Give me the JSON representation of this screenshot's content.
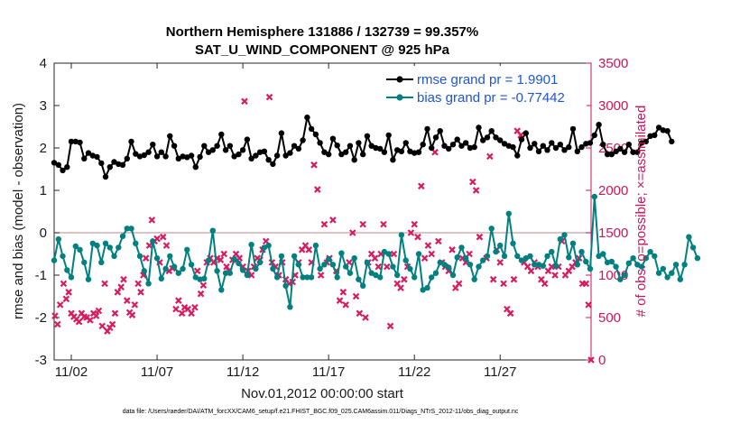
{
  "chart_data": {
    "type": "line",
    "title": [
      "Northern Hemisphere 131886 / 132739 = 99.357%",
      "SAT_U_WIND_COMPONENT @ 925 hPa"
    ],
    "xlabel": "Nov.01,2012 00:00:00 start",
    "ylabel_left": "rmse and bias (model - observation)",
    "ylabel_right": "# of obs: o=possible; ×=assimilated",
    "x_ticks": [
      {
        "day": 2,
        "label": "11/02"
      },
      {
        "day": 7,
        "label": "11/07"
      },
      {
        "day": 12,
        "label": "11/12"
      },
      {
        "day": 17,
        "label": "11/17"
      },
      {
        "day": 22,
        "label": "11/22"
      },
      {
        "day": 27,
        "label": "11/27"
      }
    ],
    "xlim": [
      1.0,
      32.3
    ],
    "ylim_left": [
      -3,
      4
    ],
    "y_ticks_left": [
      "-3",
      "-2",
      "-1",
      "0",
      "1",
      "2",
      "3",
      "4"
    ],
    "ylim_right": [
      0,
      3500
    ],
    "y_ticks_right": [
      "0",
      "500",
      "1000",
      "1500",
      "2000",
      "2500",
      "3000",
      "3500"
    ],
    "zero_line": 0,
    "footnote": "data file: /Users/raeder/DAI/ATM_forcXX/CAM6_setup/f.e21.FHIST_BGC.f09_025.CAM6assim.011/Diags_NTrS_2012-11/obs_diag_output.nc",
    "colors": {
      "rmse": "#000000",
      "bias": "#008080",
      "obs": "#d81b60",
      "legend_text": "#1f55d8",
      "right_axis": "#c8165a"
    },
    "series": [
      {
        "name": "rmse grand pr = 1.9901",
        "t0": 1.0,
        "dt": 0.25,
        "values": [
          1.65,
          1.6,
          1.47,
          1.55,
          2.15,
          2.15,
          2.13,
          1.75,
          1.88,
          1.82,
          1.79,
          1.64,
          1.32,
          1.55,
          1.67,
          1.62,
          1.6,
          1.75,
          2.15,
          1.86,
          1.8,
          1.83,
          1.9,
          2.08,
          1.8,
          1.9,
          1.8,
          2.28,
          2.05,
          1.75,
          1.8,
          1.78,
          1.82,
          1.55,
          1.79,
          2.05,
          1.9,
          1.95,
          2.05,
          2.32,
          1.95,
          2.05,
          1.8,
          1.85,
          1.95,
          2.2,
          1.75,
          1.82,
          1.9,
          1.92,
          1.72,
          1.62,
          1.82,
          2.35,
          1.82,
          1.88,
          2.05,
          1.98,
          2.18,
          2.72,
          2.45,
          2.32,
          2.12,
          1.9,
          1.85,
          2.22,
          2.06,
          1.85,
          1.9,
          2.05,
          1.72,
          2.12,
          1.85,
          2.28,
          2.05,
          2.0,
          1.98,
          1.9,
          2.3,
          1.72,
          1.95,
          1.92,
          2.12,
          1.92,
          1.88,
          1.9,
          2.08,
          2.45,
          2.0,
          2.25,
          2.4,
          2.05,
          1.98,
          2.08,
          2.2,
          2.05,
          2.12,
          2.0,
          2.02,
          2.48,
          2.18,
          2.25,
          2.4,
          2.25,
          2.18,
          2.1,
          2.05,
          2.02,
          1.82,
          2.2,
          2.35,
          2.0,
          2.1,
          1.92,
          2.05,
          1.95,
          2.12,
          2.0,
          2.08,
          1.95,
          2.02,
          2.45,
          1.92,
          2.02,
          2.1,
          2.12,
          2.3,
          2.55,
          2.08,
          1.85,
          1.85,
          1.92,
          1.98,
          1.9,
          2.08,
          1.9,
          1.9,
          2.12,
          2.15,
          2.28,
          2.3,
          2.48,
          2.42,
          2.4,
          2.15
        ]
      },
      {
        "name": "bias grand pr = -0.77442",
        "t0": 1.0,
        "dt": 0.25,
        "values": [
          -0.65,
          -0.15,
          -0.55,
          -0.88,
          -1.05,
          -0.32,
          -0.4,
          -0.7,
          -1.1,
          -0.25,
          -0.3,
          -0.7,
          -0.25,
          -0.35,
          -0.55,
          -0.35,
          -0.08,
          0.1,
          0.1,
          -0.25,
          -0.55,
          -0.9,
          -1.2,
          -0.2,
          -0.6,
          -1.08,
          -0.85,
          -0.55,
          -0.8,
          -0.95,
          -0.85,
          -0.4,
          -0.75,
          -1.05,
          -1.1,
          -1.08,
          -0.65,
          0.05,
          -0.9,
          -1.35,
          -0.95,
          -0.95,
          -0.62,
          -0.72,
          -0.88,
          -1.0,
          -0.28,
          -0.85,
          -0.7,
          -0.35,
          -0.3,
          -0.85,
          -1.05,
          -0.55,
          -1.25,
          -1.75,
          -0.55,
          -0.75,
          -1.05,
          -1.05,
          -1.05,
          -0.3,
          -0.85,
          -0.75,
          -0.62,
          -0.75,
          -1.05,
          -0.48,
          -0.8,
          -0.95,
          -0.6,
          -1.1,
          -1.25,
          -0.7,
          -0.95,
          -1.0,
          -1.05,
          -0.45,
          -0.5,
          -0.8,
          -1.0,
          -0.05,
          -0.65,
          -0.85,
          -1.05,
          -0.5,
          -1.35,
          -1.3,
          -1.05,
          -0.95,
          -0.7,
          -0.75,
          -0.82,
          -1.0,
          -0.58,
          -0.35,
          -0.6,
          -0.75,
          -1.1,
          -0.8,
          -0.65,
          -0.55,
          0.1,
          -0.45,
          -0.3,
          -0.55,
          0.45,
          -0.25,
          -0.55,
          -0.65,
          -0.6,
          -0.55,
          -0.75,
          -0.75,
          -0.78,
          -0.55,
          -0.45,
          -0.78,
          -0.15,
          -0.05,
          -0.58,
          -0.25,
          -0.75,
          -0.45,
          -0.68,
          -0.85,
          0.85,
          -0.55,
          -0.5,
          -0.7,
          -0.68,
          -0.8,
          -1.1,
          -1.0,
          -0.72,
          -0.6,
          -0.75,
          -0.8,
          -0.6,
          -0.45,
          -0.55,
          -0.95,
          -0.85,
          -1.05,
          -0.95,
          -0.75,
          -1.1,
          -0.75,
          -0.1,
          -0.35,
          -0.6
        ]
      },
      {
        "name": "obs assimilated",
        "marker": "x",
        "points": [
          [
            1.05,
            520
          ],
          [
            1.2,
            420
          ],
          [
            1.35,
            650
          ],
          [
            1.55,
            900
          ],
          [
            1.7,
            720
          ],
          [
            1.85,
            800
          ],
          [
            2.0,
            550
          ],
          [
            2.15,
            510
          ],
          [
            2.3,
            480
          ],
          [
            2.45,
            450
          ],
          [
            2.6,
            550
          ],
          [
            2.75,
            510
          ],
          [
            2.9,
            500
          ],
          [
            3.1,
            470
          ],
          [
            3.3,
            550
          ],
          [
            3.45,
            520
          ],
          [
            3.6,
            580
          ],
          [
            3.8,
            400
          ],
          [
            3.95,
            900
          ],
          [
            4.1,
            340
          ],
          [
            4.25,
            380
          ],
          [
            4.4,
            420
          ],
          [
            4.55,
            550
          ],
          [
            4.7,
            800
          ],
          [
            4.9,
            860
          ],
          [
            5.05,
            950
          ],
          [
            5.25,
            700
          ],
          [
            5.4,
            560
          ],
          [
            5.55,
            530
          ],
          [
            5.7,
            650
          ],
          [
            5.9,
            900
          ],
          [
            6.05,
            800
          ],
          [
            6.2,
            1000
          ],
          [
            6.35,
            1200
          ],
          [
            6.55,
            1350
          ],
          [
            6.7,
            1650
          ],
          [
            6.85,
            1400
          ],
          [
            7.0,
            1430
          ],
          [
            7.15,
            1150
          ],
          [
            7.35,
            1450
          ],
          [
            7.55,
            1350
          ],
          [
            7.7,
            1050
          ],
          [
            7.9,
            1080
          ],
          [
            8.1,
            600
          ],
          [
            8.25,
            700
          ],
          [
            8.45,
            550
          ],
          [
            8.6,
            620
          ],
          [
            8.8,
            600
          ],
          [
            9.0,
            550
          ],
          [
            9.2,
            620
          ],
          [
            9.35,
            1050
          ],
          [
            9.55,
            780
          ],
          [
            9.7,
            880
          ],
          [
            9.9,
            1150
          ],
          [
            10.1,
            1200
          ],
          [
            10.3,
            1150
          ],
          [
            10.5,
            1200
          ],
          [
            10.7,
            1180
          ],
          [
            10.9,
            1250
          ],
          [
            11.05,
            1100
          ],
          [
            11.2,
            1050
          ],
          [
            11.4,
            1180
          ],
          [
            11.6,
            1250
          ],
          [
            11.8,
            1200
          ],
          [
            12.0,
            1100
          ],
          [
            12.1,
            3050
          ],
          [
            12.3,
            1050
          ],
          [
            12.5,
            1000
          ],
          [
            12.65,
            1100
          ],
          [
            12.85,
            1200
          ],
          [
            13.0,
            1180
          ],
          [
            13.15,
            1300
          ],
          [
            13.35,
            1400
          ],
          [
            13.55,
            3100
          ],
          [
            13.7,
            1150
          ],
          [
            13.9,
            1100
          ],
          [
            14.1,
            1000
          ],
          [
            14.3,
            1150
          ],
          [
            14.5,
            950
          ],
          [
            14.7,
            900
          ],
          [
            14.9,
            920
          ],
          [
            15.05,
            1000
          ],
          [
            15.25,
            1150
          ],
          [
            15.45,
            1300
          ],
          [
            15.65,
            1350
          ],
          [
            15.85,
            1300
          ],
          [
            16.0,
            1150
          ],
          [
            16.15,
            2300
          ],
          [
            16.35,
            2010
          ],
          [
            16.55,
            1000
          ],
          [
            16.75,
            1600
          ],
          [
            16.9,
            1150
          ],
          [
            17.05,
            1200
          ],
          [
            17.25,
            1650
          ],
          [
            17.45,
            1050
          ],
          [
            17.65,
            700
          ],
          [
            17.85,
            800
          ],
          [
            18.0,
            650
          ],
          [
            18.2,
            1150
          ],
          [
            18.4,
            1500
          ],
          [
            18.6,
            750
          ],
          [
            18.8,
            550
          ],
          [
            19.0,
            1600
          ],
          [
            19.15,
            500
          ],
          [
            19.3,
            1150
          ],
          [
            19.5,
            1250
          ],
          [
            19.7,
            1200
          ],
          [
            19.9,
            1100
          ],
          [
            20.05,
            1250
          ],
          [
            20.2,
            1600
          ],
          [
            20.4,
            1100
          ],
          [
            20.6,
            400
          ],
          [
            20.8,
            1250
          ],
          [
            21.0,
            900
          ],
          [
            21.2,
            850
          ],
          [
            21.4,
            950
          ],
          [
            21.6,
            1100
          ],
          [
            21.8,
            1500
          ],
          [
            22.0,
            1600
          ],
          [
            22.2,
            1450
          ],
          [
            22.4,
            2050
          ],
          [
            22.6,
            1200
          ],
          [
            22.8,
            1350
          ],
          [
            23.0,
            1250
          ],
          [
            23.2,
            2450
          ],
          [
            23.4,
            1400
          ],
          [
            23.6,
            1150
          ],
          [
            23.8,
            1100
          ],
          [
            24.0,
            1050
          ],
          [
            24.2,
            1300
          ],
          [
            24.4,
            850
          ],
          [
            24.6,
            900
          ],
          [
            24.8,
            1200
          ],
          [
            25.0,
            1150
          ],
          [
            25.2,
            1250
          ],
          [
            25.4,
            2100
          ],
          [
            25.6,
            2000
          ],
          [
            25.8,
            1450
          ],
          [
            26.0,
            3300
          ],
          [
            26.2,
            1200
          ],
          [
            26.4,
            2400
          ],
          [
            26.6,
            950
          ],
          [
            26.8,
            1300
          ],
          [
            27.0,
            1150
          ],
          [
            27.2,
            900
          ],
          [
            27.4,
            600
          ],
          [
            27.6,
            550
          ],
          [
            27.8,
            950
          ],
          [
            28.0,
            2700
          ],
          [
            28.2,
            2650
          ],
          [
            28.4,
            1150
          ],
          [
            28.6,
            1100
          ],
          [
            28.8,
            1050
          ],
          [
            29.0,
            1150
          ],
          [
            29.2,
            1100
          ],
          [
            29.4,
            950
          ],
          [
            29.6,
            900
          ],
          [
            29.8,
            1050
          ],
          [
            30.0,
            1100
          ],
          [
            30.2,
            1000
          ],
          [
            30.4,
            1100
          ],
          [
            30.6,
            1400
          ],
          [
            30.8,
            1000
          ],
          [
            31.0,
            1050
          ],
          [
            31.2,
            1100
          ],
          [
            31.4,
            1150
          ],
          [
            31.6,
            1200
          ],
          [
            31.8,
            900
          ],
          [
            32.0,
            900
          ],
          [
            32.15,
            650
          ],
          [
            32.3,
            0
          ]
        ]
      }
    ]
  }
}
